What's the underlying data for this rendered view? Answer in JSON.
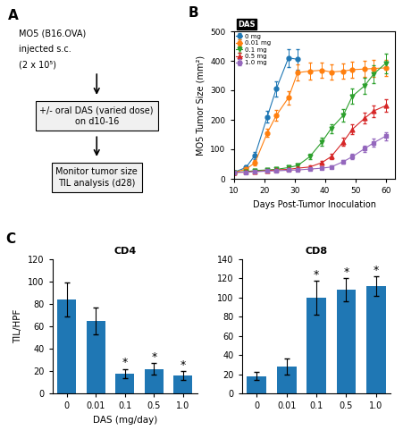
{
  "chart_data": [
    {
      "type": "text",
      "annotations": [
        {
          "text": "A"
        },
        {
          "text": "MO5 (B16.OVA)"
        },
        {
          "text": "injected s.c."
        },
        {
          "text": "(2 x 10⁵)"
        },
        {
          "text": "+/- oral DAS (varied dose)\non d10-16"
        },
        {
          "text": "Monitor tumor size\nTIL analysis (d28)"
        }
      ]
    },
    {
      "type": "line",
      "xlabel": "Days Post-Tumor Inoculation",
      "ylabel": "MO5 Tumor Size (mm²)",
      "xlim": [
        10,
        63
      ],
      "ylim": [
        0,
        500
      ],
      "xticks": [
        10,
        20,
        30,
        40,
        50,
        60
      ],
      "yticks": [
        0,
        100,
        200,
        300,
        400,
        500
      ],
      "legend": "upper left",
      "annotations": [
        {
          "text": "B"
        },
        {
          "text": "DAS"
        }
      ],
      "series": [
        {
          "name": "0 mg",
          "marker": "circle",
          "x": [
            10,
            14,
            17,
            21,
            24,
            28,
            31
          ],
          "values": [
            22,
            38,
            80,
            210,
            305,
            410,
            405
          ],
          "yerr": [
            5,
            8,
            12,
            20,
            25,
            30,
            35
          ]
        },
        {
          "name": "0.01 mg",
          "marker": "circle",
          "x": [
            10,
            14,
            17,
            21,
            24,
            28,
            31,
            35,
            39,
            42,
            46,
            49,
            53,
            56,
            60
          ],
          "values": [
            22,
            32,
            55,
            155,
            215,
            275,
            360,
            365,
            368,
            362,
            365,
            370,
            372,
            374,
            376
          ],
          "yerr": [
            5,
            7,
            9,
            14,
            18,
            22,
            28,
            28,
            26,
            26,
            27,
            28,
            28,
            28,
            28
          ]
        },
        {
          "name": "0.1 mg",
          "marker": "triangle_down",
          "x": [
            10,
            14,
            17,
            21,
            24,
            28,
            31,
            35,
            39,
            42,
            46,
            49,
            53,
            56,
            60
          ],
          "values": [
            22,
            24,
            28,
            30,
            32,
            38,
            45,
            75,
            125,
            170,
            215,
            280,
            315,
            355,
            392
          ],
          "yerr": [
            4,
            4,
            4,
            4,
            5,
            5,
            6,
            9,
            13,
            16,
            20,
            25,
            28,
            30,
            33
          ]
        },
        {
          "name": "0.5 mg",
          "marker": "triangle_up",
          "x": [
            10,
            14,
            17,
            21,
            24,
            28,
            31,
            35,
            39,
            42,
            46,
            49,
            53,
            56,
            60
          ],
          "values": [
            22,
            23,
            25,
            28,
            30,
            32,
            36,
            40,
            55,
            75,
            125,
            168,
            205,
            230,
            248
          ],
          "yerr": [
            4,
            4,
            4,
            4,
            4,
            4,
            5,
            5,
            7,
            9,
            13,
            16,
            18,
            20,
            22
          ]
        },
        {
          "name": "1.0 mg",
          "marker": "square",
          "x": [
            10,
            14,
            17,
            21,
            24,
            28,
            31,
            35,
            39,
            42,
            46,
            49,
            53,
            56,
            60
          ],
          "values": [
            22,
            22,
            24,
            26,
            27,
            29,
            30,
            33,
            36,
            40,
            58,
            75,
            102,
            122,
            145
          ],
          "yerr": [
            3,
            3,
            3,
            3,
            3,
            3,
            4,
            4,
            4,
            5,
            6,
            9,
            11,
            13,
            14
          ]
        }
      ]
    },
    {
      "type": "bar",
      "title": "CD4",
      "ylabel": "TIL/HPF",
      "xlabel": "DAS (mg/day)",
      "categories": [
        "0",
        "0.01",
        "0.1",
        "0.5",
        "1.0"
      ],
      "values": [
        84,
        65,
        18,
        22,
        16
      ],
      "yerr": [
        15,
        12,
        4,
        5,
        4
      ],
      "ylim": [
        0,
        120
      ],
      "yticks": [
        0,
        20,
        40,
        60,
        80,
        100,
        120
      ],
      "annotations": [
        {
          "text": "C"
        },
        {
          "text": "*",
          "category": "0.1"
        },
        {
          "text": "*",
          "category": "0.5"
        },
        {
          "text": "*",
          "category": "1.0"
        }
      ]
    },
    {
      "type": "bar",
      "title": "CD8",
      "categories": [
        "0",
        "0.01",
        "0.1",
        "0.5",
        "1.0"
      ],
      "values": [
        18,
        28,
        100,
        108,
        112
      ],
      "yerr": [
        4,
        8,
        18,
        12,
        10
      ],
      "ylim": [
        0,
        140
      ],
      "yticks": [
        0,
        20,
        40,
        60,
        80,
        100,
        120,
        140
      ],
      "annotations": [
        {
          "text": "*",
          "category": "0.1"
        },
        {
          "text": "*",
          "category": "0.5"
        },
        {
          "text": "*",
          "category": "1.0"
        }
      ]
    }
  ]
}
